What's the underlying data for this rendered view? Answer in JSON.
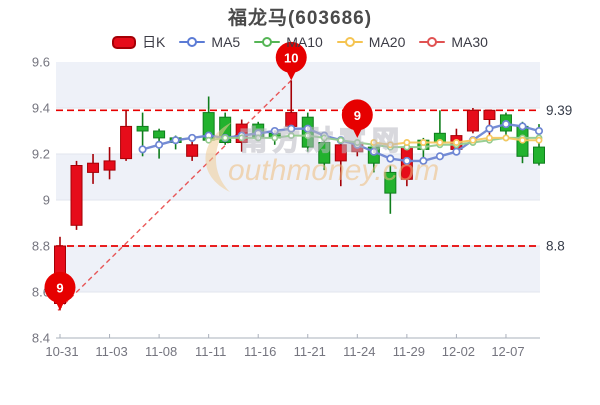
{
  "title": "福龙马(603686)",
  "legend": {
    "items": [
      {
        "label": "日K",
        "type": "candle",
        "color": "#e60c1a"
      },
      {
        "label": "MA5",
        "type": "line",
        "color": "#5b7bd5"
      },
      {
        "label": "MA10",
        "type": "line",
        "color": "#55b555"
      },
      {
        "label": "MA20",
        "type": "line",
        "color": "#f5c451"
      },
      {
        "label": "MA30",
        "type": "line",
        "color": "#e05252"
      }
    ]
  },
  "watermark": {
    "cn": "南方财富网",
    "en": "outhmoney.com"
  },
  "chart_data": {
    "type": "candlestick",
    "ylim": [
      8.4,
      9.6
    ],
    "y_ticks": [
      "9.6",
      "9.4",
      "9.2",
      "9",
      "8.8",
      "8.6",
      "8.4"
    ],
    "y_tick_values": [
      9.6,
      9.4,
      9.2,
      9.0,
      8.8,
      8.6,
      8.4
    ],
    "x_labels": [
      "10-31",
      "11-03",
      "11-08",
      "11-11",
      "11-16",
      "11-21",
      "11-24",
      "11-29",
      "12-02",
      "12-07"
    ],
    "x_label_indices": [
      0,
      3,
      6,
      9,
      12,
      15,
      18,
      21,
      24,
      27
    ],
    "candles": [
      {
        "date": "10-31",
        "o": 8.55,
        "c": 8.8,
        "h": 8.84,
        "l": 8.52
      },
      {
        "date": "11-01",
        "o": 8.89,
        "c": 9.15,
        "h": 9.17,
        "l": 8.87
      },
      {
        "date": "11-02",
        "o": 9.12,
        "c": 9.16,
        "h": 9.2,
        "l": 9.07
      },
      {
        "date": "11-03",
        "o": 9.13,
        "c": 9.17,
        "h": 9.23,
        "l": 9.09
      },
      {
        "date": "11-04",
        "o": 9.18,
        "c": 9.32,
        "h": 9.39,
        "l": 9.17
      },
      {
        "date": "11-07",
        "o": 9.32,
        "c": 9.3,
        "h": 9.38,
        "l": 9.19
      },
      {
        "date": "11-08",
        "o": 9.3,
        "c": 9.27,
        "h": 9.31,
        "l": 9.18
      },
      {
        "date": "11-09",
        "o": 9.27,
        "c": 9.25,
        "h": 9.28,
        "l": 9.22
      },
      {
        "date": "11-10",
        "o": 9.19,
        "c": 9.24,
        "h": 9.27,
        "l": 9.17
      },
      {
        "date": "11-11",
        "o": 9.38,
        "c": 9.26,
        "h": 9.45,
        "l": 9.25
      },
      {
        "date": "11-14",
        "o": 9.36,
        "c": 9.25,
        "h": 9.38,
        "l": 9.24
      },
      {
        "date": "11-15",
        "o": 9.25,
        "c": 9.33,
        "h": 9.35,
        "l": 9.21
      },
      {
        "date": "11-16",
        "o": 9.33,
        "c": 9.27,
        "h": 9.34,
        "l": 9.26
      },
      {
        "date": "11-17",
        "o": 9.29,
        "c": 9.27,
        "h": 9.31,
        "l": 9.24
      },
      {
        "date": "11-18",
        "o": 9.32,
        "c": 9.38,
        "h": 9.52,
        "l": 9.3
      },
      {
        "date": "11-21",
        "o": 9.36,
        "c": 9.23,
        "h": 9.38,
        "l": 9.21
      },
      {
        "date": "11-22",
        "o": 9.25,
        "c": 9.16,
        "h": 9.26,
        "l": 9.13
      },
      {
        "date": "11-23",
        "o": 9.17,
        "c": 9.24,
        "h": 9.25,
        "l": 9.06
      },
      {
        "date": "11-24",
        "o": 9.21,
        "c": 9.24,
        "h": 9.26,
        "l": 9.19
      },
      {
        "date": "11-25",
        "o": 9.23,
        "c": 9.16,
        "h": 9.24,
        "l": 9.12
      },
      {
        "date": "11-28",
        "o": 9.12,
        "c": 9.03,
        "h": 9.15,
        "l": 8.94
      },
      {
        "date": "11-29",
        "o": 9.09,
        "c": 9.23,
        "h": 9.24,
        "l": 9.06
      },
      {
        "date": "11-30",
        "o": 9.26,
        "c": 9.22,
        "h": 9.27,
        "l": 9.18
      },
      {
        "date": "12-01",
        "o": 9.29,
        "c": 9.25,
        "h": 9.39,
        "l": 9.24
      },
      {
        "date": "12-02",
        "o": 9.22,
        "c": 9.28,
        "h": 9.31,
        "l": 9.2
      },
      {
        "date": "12-05",
        "o": 9.3,
        "c": 9.39,
        "h": 9.4,
        "l": 9.29
      },
      {
        "date": "12-06",
        "o": 9.35,
        "c": 9.39,
        "h": 9.39,
        "l": 9.26
      },
      {
        "date": "12-07",
        "o": 9.37,
        "c": 9.3,
        "h": 9.38,
        "l": 9.27
      },
      {
        "date": "12-08",
        "o": 9.32,
        "c": 9.19,
        "h": 9.34,
        "l": 9.16
      },
      {
        "date": "12-09",
        "o": 9.23,
        "c": 9.16,
        "h": 9.33,
        "l": 9.15
      }
    ],
    "series": [
      {
        "name": "MA5",
        "start": 5,
        "color": "#6e86d3",
        "values": [
          9.22,
          9.24,
          9.26,
          9.27,
          9.28,
          9.27,
          9.28,
          9.29,
          9.3,
          9.31,
          9.31,
          9.28,
          9.26,
          9.24,
          9.21,
          9.18,
          9.17,
          9.17,
          9.19,
          9.21,
          9.26,
          9.31,
          9.33,
          9.32,
          9.3
        ]
      },
      {
        "name": "MA10",
        "start": 9,
        "color": "#93cb8e",
        "values": [
          9.26,
          9.27,
          9.27,
          9.27,
          9.27,
          9.28,
          9.28,
          9.27,
          9.26,
          9.25,
          9.24,
          9.23,
          9.23,
          9.23,
          9.24,
          9.24,
          9.25,
          9.26,
          9.27,
          9.27,
          9.27
        ]
      },
      {
        "name": "MA20",
        "start": 19,
        "color": "#f6c860",
        "values": [
          9.25,
          9.24,
          9.25,
          9.25,
          9.25,
          9.25,
          9.26,
          9.27,
          9.27,
          9.26,
          9.26
        ]
      },
      {
        "name": "MA30",
        "start": null,
        "color": "#e05252",
        "values": []
      }
    ],
    "ref_lines": [
      {
        "value": 9.39,
        "label": "9.39"
      },
      {
        "value": 8.8,
        "label": "8.8"
      }
    ],
    "trend_line": {
      "from_index": 0,
      "from_value": 8.52,
      "to_index": 14,
      "to_value": 9.52
    },
    "markers": [
      {
        "label": "9",
        "index": 0,
        "value": 8.52
      },
      {
        "label": "10",
        "index": 14,
        "value": 9.52
      },
      {
        "label": "9",
        "index": 18,
        "value": 9.27
      }
    ],
    "colors": {
      "up": "#e60c1a",
      "up_border": "#a50006",
      "down": "#22b22e",
      "down_border": "#0f7d1c",
      "ref": "#e60000",
      "marker": "#e60000",
      "stripe": "#eef1f8",
      "grid": "#e2e5ee",
      "axis": "#aab0bb",
      "tick_text": "#75757f",
      "ref_text": "#363c49"
    }
  }
}
